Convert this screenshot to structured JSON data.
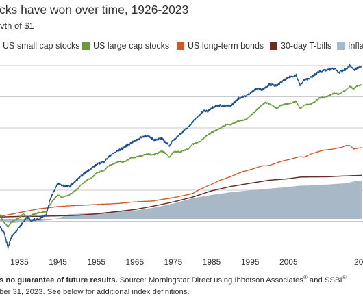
{
  "header": {
    "title": "cks have won over time, 1926-2023",
    "subtitle": "vth of $1"
  },
  "footnote": {
    "line1_bold": "s no guarantee of future results.",
    "line1_a": " Source: Morningstar Direct using Ibbotson Associates",
    "line1_sup1": "®",
    "line1_b": " and SSBI",
    "line1_sup2": "®",
    "line2": "ber 31, 2023. See below for additional index definitions."
  },
  "colors": {
    "small_cap": "#1d4f91",
    "large_cap": "#6a9c3a",
    "bonds": "#d0592b",
    "tbills": "#6b2d26",
    "inflation": "#a9b8c6",
    "gridline": "#b8b8b8",
    "text": "#333333"
  },
  "chart_data": {
    "type": "line",
    "title": "cks have won over time, 1926-2023",
    "subtitle": "vth of $1",
    "xlabel": "",
    "ylabel": "",
    "x_ticks": [
      1935,
      1945,
      1955,
      1965,
      1975,
      1985,
      1995,
      2005,
      "20"
    ],
    "xlim": [
      1926,
      2025
    ],
    "y_scale": "log",
    "y_gridlines": 6,
    "legend_position": "top",
    "series": [
      {
        "name": "US small cap stocks",
        "key": "small_cap",
        "style": "line",
        "points": [
          [
            1926,
            0.95
          ],
          [
            1928,
            0.98
          ],
          [
            1929,
            0.8
          ],
          [
            1931,
            0.35
          ],
          [
            1932,
            0.12
          ],
          [
            1933,
            0.28
          ],
          [
            1935,
            0.55
          ],
          [
            1936,
            0.8
          ],
          [
            1937,
            1.2
          ],
          [
            1938,
            0.85
          ],
          [
            1939,
            0.95
          ],
          [
            1940,
            1.0
          ],
          [
            1942,
            1.4
          ],
          [
            1943,
            4.5
          ],
          [
            1945,
            14
          ],
          [
            1946,
            12
          ],
          [
            1948,
            11
          ],
          [
            1950,
            18
          ],
          [
            1952,
            30
          ],
          [
            1954,
            45
          ],
          [
            1955,
            55
          ],
          [
            1957,
            70
          ],
          [
            1959,
            120
          ],
          [
            1960,
            140
          ],
          [
            1962,
            190
          ],
          [
            1963,
            230
          ],
          [
            1965,
            320
          ],
          [
            1967,
            430
          ],
          [
            1968,
            480
          ],
          [
            1970,
            350
          ],
          [
            1972,
            380
          ],
          [
            1973,
            290
          ],
          [
            1974,
            220
          ],
          [
            1975,
            340
          ],
          [
            1977,
            560
          ],
          [
            1979,
            900
          ],
          [
            1980,
            1300
          ],
          [
            1983,
            3000
          ],
          [
            1984,
            2800
          ],
          [
            1985,
            3800
          ],
          [
            1987,
            4500
          ],
          [
            1988,
            4200
          ],
          [
            1990,
            4300
          ],
          [
            1992,
            7500
          ],
          [
            1994,
            9000
          ],
          [
            1995,
            11000
          ],
          [
            1997,
            16000
          ],
          [
            1998,
            14000
          ],
          [
            1999,
            17000
          ],
          [
            2000,
            21000
          ],
          [
            2002,
            19000
          ],
          [
            2003,
            24000
          ],
          [
            2005,
            35000
          ],
          [
            2007,
            42000
          ],
          [
            2008,
            19000
          ],
          [
            2009,
            28000
          ],
          [
            2011,
            36000
          ],
          [
            2013,
            55000
          ],
          [
            2015,
            60000
          ],
          [
            2017,
            68000
          ],
          [
            2018,
            50000
          ],
          [
            2020,
            65000
          ],
          [
            2021,
            85000
          ],
          [
            2022,
            60000
          ],
          [
            2023,
            70000
          ],
          [
            2024,
            78000
          ]
        ]
      },
      {
        "name": "US large cap stocks",
        "key": "large_cap",
        "style": "line",
        "points": [
          [
            1926,
            1.0
          ],
          [
            1928,
            1.6
          ],
          [
            1929,
            1.9
          ],
          [
            1930,
            1.3
          ],
          [
            1931,
            0.75
          ],
          [
            1932,
            0.55
          ],
          [
            1933,
            0.8
          ],
          [
            1935,
            1.1
          ],
          [
            1936,
            1.5
          ],
          [
            1937,
            1.0
          ],
          [
            1938,
            1.3
          ],
          [
            1940,
            1.6
          ],
          [
            1942,
            1.7
          ],
          [
            1943,
            3.0
          ],
          [
            1945,
            6.0
          ],
          [
            1946,
            5.0
          ],
          [
            1948,
            6.0
          ],
          [
            1950,
            9.0
          ],
          [
            1952,
            16
          ],
          [
            1954,
            22
          ],
          [
            1955,
            30
          ],
          [
            1957,
            35
          ],
          [
            1958,
            50
          ],
          [
            1959,
            55
          ],
          [
            1961,
            70
          ],
          [
            1962,
            65
          ],
          [
            1964,
            90
          ],
          [
            1966,
            100
          ],
          [
            1968,
            120
          ],
          [
            1970,
            115
          ],
          [
            1972,
            150
          ],
          [
            1973,
            130
          ],
          [
            1974,
            95
          ],
          [
            1975,
            140
          ],
          [
            1977,
            145
          ],
          [
            1979,
            180
          ],
          [
            1980,
            250
          ],
          [
            1982,
            300
          ],
          [
            1983,
            400
          ],
          [
            1985,
            600
          ],
          [
            1987,
            800
          ],
          [
            1989,
            1100
          ],
          [
            1990,
            1050
          ],
          [
            1992,
            1400
          ],
          [
            1994,
            1600
          ],
          [
            1996,
            2600
          ],
          [
            1998,
            4500
          ],
          [
            1999,
            5500
          ],
          [
            2000,
            5000
          ],
          [
            2002,
            3500
          ],
          [
            2003,
            4500
          ],
          [
            2005,
            5000
          ],
          [
            2007,
            6000
          ],
          [
            2008,
            3500
          ],
          [
            2009,
            4500
          ],
          [
            2011,
            5000
          ],
          [
            2013,
            7500
          ],
          [
            2015,
            8500
          ],
          [
            2017,
            11000
          ],
          [
            2018,
            10000
          ],
          [
            2020,
            14000
          ],
          [
            2021,
            18000
          ],
          [
            2022,
            15000
          ],
          [
            2023,
            19000
          ],
          [
            2024,
            20000
          ]
        ]
      },
      {
        "name": "US long-term bonds",
        "key": "bonds",
        "style": "line",
        "points": [
          [
            1926,
            1.0
          ],
          [
            1930,
            1.2
          ],
          [
            1935,
            1.6
          ],
          [
            1940,
            2.1
          ],
          [
            1945,
            2.5
          ],
          [
            1950,
            2.7
          ],
          [
            1955,
            2.9
          ],
          [
            1960,
            3.1
          ],
          [
            1965,
            3.5
          ],
          [
            1970,
            3.8
          ],
          [
            1975,
            4.8
          ],
          [
            1977,
            5.4
          ],
          [
            1980,
            6.5
          ],
          [
            1982,
            9.0
          ],
          [
            1985,
            13
          ],
          [
            1987,
            17
          ],
          [
            1990,
            23
          ],
          [
            1993,
            33
          ],
          [
            1995,
            38
          ],
          [
            1998,
            50
          ],
          [
            2000,
            52
          ],
          [
            2003,
            70
          ],
          [
            2005,
            80
          ],
          [
            2008,
            100
          ],
          [
            2009,
            95
          ],
          [
            2011,
            125
          ],
          [
            2012,
            135
          ],
          [
            2014,
            160
          ],
          [
            2016,
            170
          ],
          [
            2019,
            200
          ],
          [
            2020,
            230
          ],
          [
            2021,
            225
          ],
          [
            2022,
            175
          ],
          [
            2023,
            185
          ],
          [
            2024,
            195
          ]
        ]
      },
      {
        "name": "30-day T-bills",
        "key": "tbills",
        "style": "line",
        "points": [
          [
            1926,
            1.0
          ],
          [
            1930,
            1.15
          ],
          [
            1935,
            1.2
          ],
          [
            1940,
            1.21
          ],
          [
            1945,
            1.25
          ],
          [
            1950,
            1.3
          ],
          [
            1955,
            1.45
          ],
          [
            1960,
            1.7
          ],
          [
            1965,
            2.0
          ],
          [
            1970,
            2.6
          ],
          [
            1975,
            3.5
          ],
          [
            1980,
            5.0
          ],
          [
            1985,
            8.0
          ],
          [
            1990,
            11
          ],
          [
            1995,
            14
          ],
          [
            2000,
            17.5
          ],
          [
            2005,
            19.5
          ],
          [
            2008,
            22
          ],
          [
            2010,
            22.3
          ],
          [
            2015,
            22.5
          ],
          [
            2018,
            23.5
          ],
          [
            2020,
            24
          ],
          [
            2022,
            24.5
          ],
          [
            2024,
            25
          ]
        ]
      },
      {
        "name": "Inflation",
        "key": "inflation",
        "style": "area",
        "points": [
          [
            1926,
            1.0
          ],
          [
            1930,
            0.85
          ],
          [
            1933,
            0.72
          ],
          [
            1935,
            0.78
          ],
          [
            1940,
            0.82
          ],
          [
            1945,
            1.05
          ],
          [
            1948,
            1.4
          ],
          [
            1950,
            1.45
          ],
          [
            1955,
            1.55
          ],
          [
            1960,
            1.7
          ],
          [
            1965,
            1.85
          ],
          [
            1970,
            2.3
          ],
          [
            1975,
            3.1
          ],
          [
            1980,
            4.6
          ],
          [
            1985,
            5.9
          ],
          [
            1990,
            7.2
          ],
          [
            1995,
            8.3
          ],
          [
            2000,
            9.4
          ],
          [
            2005,
            10.6
          ],
          [
            2008,
            11.7
          ],
          [
            2010,
            11.8
          ],
          [
            2015,
            12.7
          ],
          [
            2020,
            14.0
          ],
          [
            2022,
            16.0
          ],
          [
            2024,
            17.0
          ]
        ]
      }
    ]
  }
}
